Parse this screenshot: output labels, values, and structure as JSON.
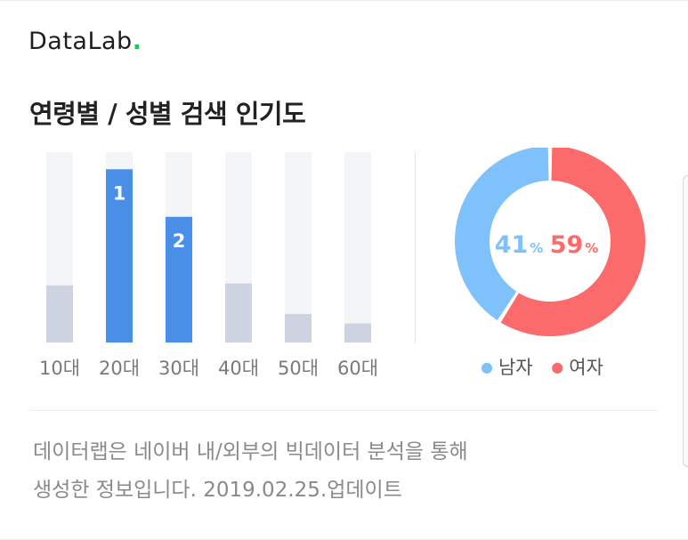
{
  "brand": {
    "name": "DataLab",
    "dot": ".",
    "accent_color": "#22c455"
  },
  "title": "연령별 / 성별 검색 인기도",
  "chart_data": [
    {
      "type": "bar",
      "categories": [
        "10대",
        "20대",
        "30대",
        "40대",
        "50대",
        "60대"
      ],
      "values": [
        30,
        91,
        66,
        31,
        15,
        10
      ],
      "ylim": [
        0,
        100
      ],
      "rank_labels": [
        "",
        "1",
        "2",
        "",
        "",
        ""
      ],
      "colors": {
        "highlight": "#4a8fe7",
        "normal": "#cdd3e1",
        "track": "#f4f5f7"
      }
    },
    {
      "type": "pie",
      "donut": true,
      "slices": [
        {
          "name": "남자",
          "value": 41,
          "color": "#7fc1fb"
        },
        {
          "name": "여자",
          "value": 59,
          "color": "#fb6b6b"
        }
      ],
      "unit": "%"
    }
  ],
  "footnote": {
    "line1": "데이터랩은 네이버 내/외부의 빅데이터 분석을 통해",
    "line2": "생성한 정보입니다.  2019.02.25.업데이트"
  }
}
